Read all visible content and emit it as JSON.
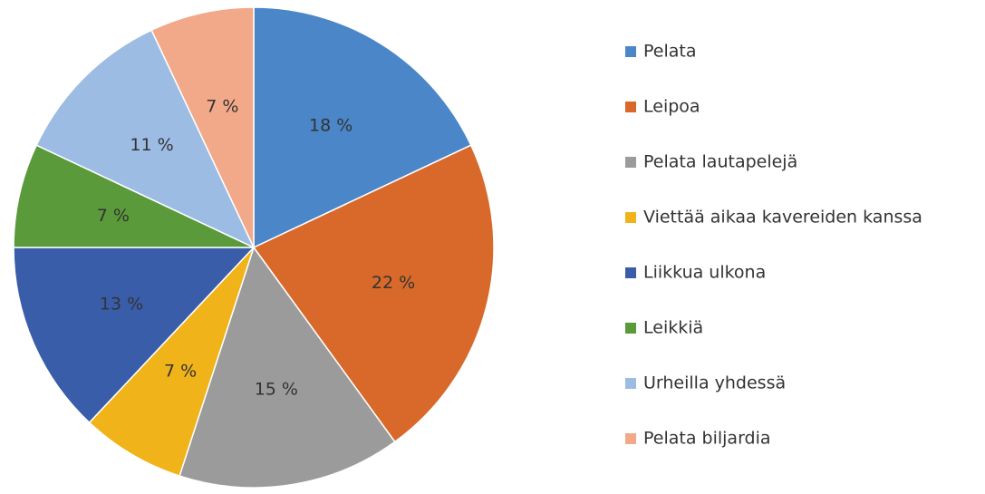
{
  "chart_data": {
    "type": "pie",
    "categories": [
      "Pelata",
      "Leipoa",
      "Pelata lautapelejä",
      "Viettää aikaa kavereiden kanssa",
      "Liikkua ulkona",
      "Leikkiä",
      "Urheilla yhdessä",
      "Pelata biljardia"
    ],
    "values": [
      18,
      22,
      15,
      7,
      13,
      7,
      11,
      7
    ],
    "value_labels": [
      "18 %",
      "22 %",
      "15 %",
      "7 %",
      "13 %",
      "7 %",
      "11 %",
      "7 %"
    ],
    "colors": [
      "#4a86c8",
      "#d9692a",
      "#9b9b9b",
      "#f0b41a",
      "#3a5daa",
      "#5a9a3a",
      "#9dbce4",
      "#f2a98a"
    ],
    "legend": "right"
  }
}
